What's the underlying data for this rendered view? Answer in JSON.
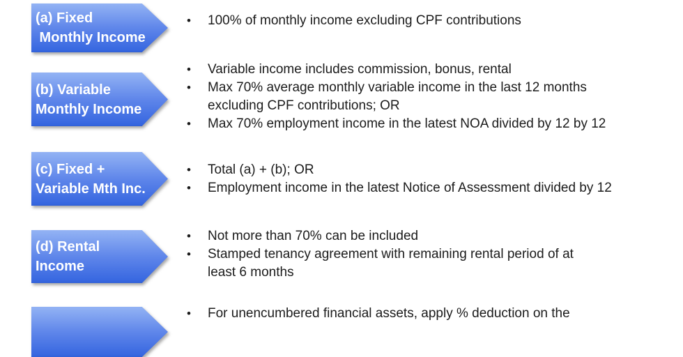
{
  "ui": {
    "bullet_char": "•"
  },
  "style": {
    "arrow_gradient_top": "#93b3f4",
    "arrow_gradient_bottom": "#3767e0",
    "arrow_text_color": "#ffffff",
    "body_text_color": "#1b1b1b",
    "background": "#ffffff"
  },
  "sections": [
    {
      "id": "a",
      "label_line1": "(a) Fixed",
      "label_line2": " Monthly Income",
      "bullets": [
        "100% of monthly income excluding CPF contributions"
      ]
    },
    {
      "id": "b",
      "label_line1": "(b) Variable",
      "label_line2": "Monthly Income",
      "bullets": [
        "Variable income includes commission, bonus, rental",
        "Max 70% average monthly variable income in the last 12 months\nexcluding CPF contributions; OR",
        "Max 70% employment income in the latest NOA divided by 12 by 12"
      ]
    },
    {
      "id": "c",
      "label_line1": "(c) Fixed +",
      "label_line2": "Variable Mth Inc.",
      "bullets": [
        "Total (a) + (b); OR",
        "Employment income in the latest Notice of Assessment divided by 12"
      ]
    },
    {
      "id": "d",
      "label_line1": "(d) Rental",
      "label_line2": "Income",
      "bullets": [
        "Not more than 70% can be included",
        "Stamped tenancy agreement with remaining rental period of at\nleast 6 months"
      ]
    },
    {
      "id": "e",
      "label_line1": "",
      "label_line2": "",
      "bullets": [
        "For unencumbered financial assets, apply % deduction on the"
      ]
    }
  ]
}
